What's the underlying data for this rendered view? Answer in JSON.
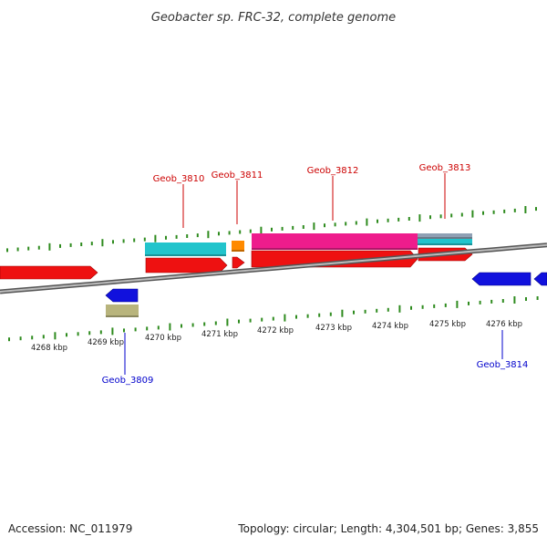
{
  "title": "Geobacter sp. FRC-32, complete genome",
  "footer": {
    "accession": "Accession: NC_011979",
    "stats": "Topology: circular; Length: 4,304,501 bp; Genes: 3,855"
  },
  "colors": {
    "outer_ticks": "#2e8b1e",
    "inner_ticks": "#2e8b1e",
    "backbone": "#8c8c8c",
    "cds": "#ee1111",
    "plus_label": "#cc0000",
    "minus_label": "#0000cc",
    "minus_cds": "#1111dd",
    "teal": "#22c4cc",
    "orange": "#ff8a00",
    "pink": "#ee1c8c",
    "grey_blue": "#8fa0b4",
    "olive": "#b8b47c"
  },
  "kbp_labels": [
    {
      "text": "4268 kbp"
    },
    {
      "text": "4269 kbp"
    },
    {
      "text": "4270 kbp"
    },
    {
      "text": "4271 kbp"
    },
    {
      "text": "4272 kbp"
    },
    {
      "text": "4273 kbp"
    },
    {
      "text": "4274 kbp"
    },
    {
      "text": "4275 kbp"
    },
    {
      "text": "4276 kbp"
    }
  ],
  "gene_labels": [
    {
      "text": "Geob_3810",
      "strand": "plus"
    },
    {
      "text": "Geob_3811",
      "strand": "plus"
    },
    {
      "text": "Geob_3812",
      "strand": "plus"
    },
    {
      "text": "Geob_3813",
      "strand": "plus"
    },
    {
      "text": "Geob_3809",
      "strand": "minus"
    },
    {
      "text": "Geob_3814",
      "strand": "minus"
    }
  ]
}
